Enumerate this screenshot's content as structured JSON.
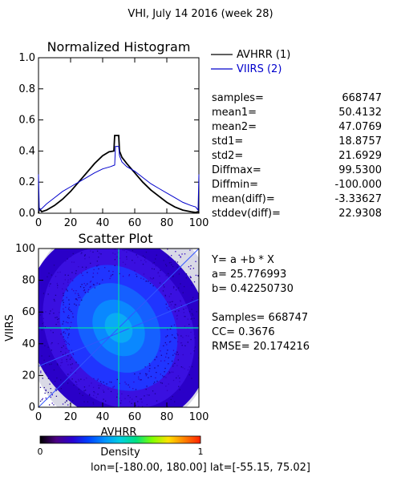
{
  "page": {
    "title": "VHI,  July 14 2016 (week 28)",
    "footer": "lon=[-180.00, 180.00] lat=[-55.15, 75.02]"
  },
  "colors": {
    "avhrr": "#000000",
    "viirs": "#0000cc",
    "scatter_fit": "#3355ff",
    "scatter_cross": "#00ddaa"
  },
  "histogram": {
    "title": "Normalized Histogram",
    "legend": [
      {
        "label": "AVHRR (1)",
        "color": "#000000"
      },
      {
        "label": "VIIRS (2)",
        "color": "#0000cc"
      }
    ],
    "stats": [
      {
        "label": "samples=",
        "value": "668747"
      },
      {
        "label": "mean1=",
        "value": "50.4132"
      },
      {
        "label": "mean2=",
        "value": "47.0769"
      },
      {
        "label": "std1=",
        "value": "18.8757"
      },
      {
        "label": "std2=",
        "value": "21.6929"
      },
      {
        "label": "Diffmax=",
        "value": "99.5300"
      },
      {
        "label": "Diffmin=",
        "value": "-100.000"
      },
      {
        "label": "mean(diff)=",
        "value": "-3.33627"
      },
      {
        "label": "stddev(diff)=",
        "value": "22.9308"
      }
    ]
  },
  "scatter": {
    "title": "Scatter Plot",
    "stats": [
      "Y= a +b * X",
      "a= 25.776993",
      "b= 0.42250730",
      "",
      "Samples= 668747",
      "CC=  0.3676",
      "RMSE= 20.174216"
    ]
  },
  "colorbar": {
    "label": "Density",
    "min_label": "0",
    "max_label": "1",
    "stops": [
      "#000000",
      "#4b0082",
      "#2a00d0",
      "#0040ff",
      "#0090ff",
      "#00d0e0",
      "#00e080",
      "#80ff00",
      "#ffe000",
      "#ff8000",
      "#ff2000"
    ]
  },
  "chart_data": [
    {
      "type": "line",
      "title": "Normalized Histogram",
      "xlim": [
        0,
        100
      ],
      "ylim": [
        0,
        1
      ],
      "xticks": [
        "0",
        "20",
        "40",
        "60",
        "80",
        "100"
      ],
      "yticks": [
        "0.0",
        "0.2",
        "0.4",
        "0.6",
        "0.8",
        "1.0"
      ],
      "series": [
        {
          "name": "AVHRR (1)",
          "color": "#000000",
          "points": [
            [
              0,
              0.0
            ],
            [
              0.5,
              0.03
            ],
            [
              2,
              0.01
            ],
            [
              5,
              0.02
            ],
            [
              10,
              0.05
            ],
            [
              15,
              0.09
            ],
            [
              20,
              0.14
            ],
            [
              25,
              0.2
            ],
            [
              30,
              0.26
            ],
            [
              35,
              0.32
            ],
            [
              40,
              0.37
            ],
            [
              44,
              0.395
            ],
            [
              47,
              0.4
            ],
            [
              47.5,
              0.5
            ],
            [
              50,
              0.5
            ],
            [
              50.5,
              0.4
            ],
            [
              52,
              0.36
            ],
            [
              55,
              0.32
            ],
            [
              60,
              0.26
            ],
            [
              65,
              0.2
            ],
            [
              70,
              0.15
            ],
            [
              75,
              0.11
            ],
            [
              80,
              0.07
            ],
            [
              85,
              0.04
            ],
            [
              90,
              0.02
            ],
            [
              95,
              0.01
            ],
            [
              98,
              0.005
            ],
            [
              99.5,
              0.01
            ],
            [
              100,
              0.0
            ]
          ]
        },
        {
          "name": "VIIRS (2)",
          "color": "#0000cc",
          "points": [
            [
              0,
              0.25
            ],
            [
              0.5,
              0.02
            ],
            [
              2,
              0.03
            ],
            [
              5,
              0.06
            ],
            [
              10,
              0.1
            ],
            [
              15,
              0.14
            ],
            [
              20,
              0.17
            ],
            [
              25,
              0.2
            ],
            [
              30,
              0.23
            ],
            [
              35,
              0.26
            ],
            [
              40,
              0.285
            ],
            [
              45,
              0.3
            ],
            [
              47.5,
              0.31
            ],
            [
              48,
              0.43
            ],
            [
              50,
              0.43
            ],
            [
              50.5,
              0.37
            ],
            [
              52,
              0.33
            ],
            [
              55,
              0.3
            ],
            [
              60,
              0.27
            ],
            [
              65,
              0.23
            ],
            [
              70,
              0.19
            ],
            [
              75,
              0.16
            ],
            [
              80,
              0.13
            ],
            [
              85,
              0.1
            ],
            [
              90,
              0.07
            ],
            [
              95,
              0.05
            ],
            [
              98,
              0.04
            ],
            [
              99.5,
              0.02
            ],
            [
              100,
              0.25
            ]
          ]
        }
      ]
    },
    {
      "type": "scatter",
      "title": "Scatter Plot",
      "xlabel": "AVHRR",
      "ylabel": "VIIRS",
      "xlim": [
        0,
        100
      ],
      "ylim": [
        0,
        100
      ],
      "xticks": [
        "0",
        "20",
        "40",
        "60",
        "80",
        "100"
      ],
      "yticks": [
        "0",
        "20",
        "40",
        "60",
        "80",
        "100"
      ],
      "fit": {
        "a": 25.776993,
        "b": 0.4225073
      },
      "reference_line": "y = x",
      "density_center": [
        50,
        50
      ]
    }
  ]
}
